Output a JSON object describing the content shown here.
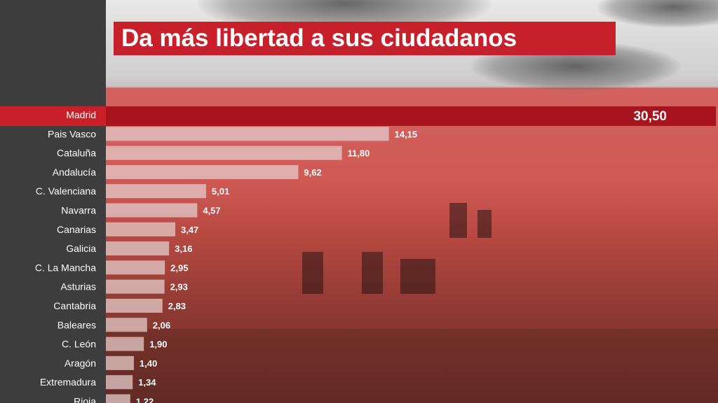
{
  "title": "Da más libertad a sus ciudadanos",
  "colors": {
    "accent": "#c8202b",
    "highlight_bar": "#a8141e",
    "bar": "#e2c7c4",
    "sidebar": "#3d3d3d",
    "text": "#ffffff"
  },
  "chart_data": {
    "type": "bar",
    "orientation": "horizontal",
    "title": "Da más libertad a sus ciudadanos",
    "xlabel": "",
    "ylabel": "",
    "highlight": "Madrid",
    "grid": false,
    "xlim": [
      0,
      30.5
    ],
    "categories": [
      "Madrid",
      "Pais Vasco",
      "Cataluña",
      "Andalucía",
      "C. Valenciana",
      "Navarra",
      "Canarias",
      "Galicia",
      "C. La Mancha",
      "Asturias",
      "Cantabria",
      "Baleares",
      "C. León",
      "Aragón",
      "Extremadura",
      "Rioja"
    ],
    "values": [
      30.5,
      14.15,
      11.8,
      9.62,
      5.01,
      4.57,
      3.47,
      3.16,
      2.95,
      2.93,
      2.83,
      2.06,
      1.9,
      1.4,
      1.34,
      1.22
    ],
    "value_labels": [
      "30,50",
      "14,15",
      "11,80",
      "9,62",
      "5,01",
      "4,57",
      "3,47",
      "3,16",
      "2,95",
      "2,93",
      "2,83",
      "2,06",
      "1,90",
      "1,40",
      "1,34",
      "1,22"
    ]
  }
}
